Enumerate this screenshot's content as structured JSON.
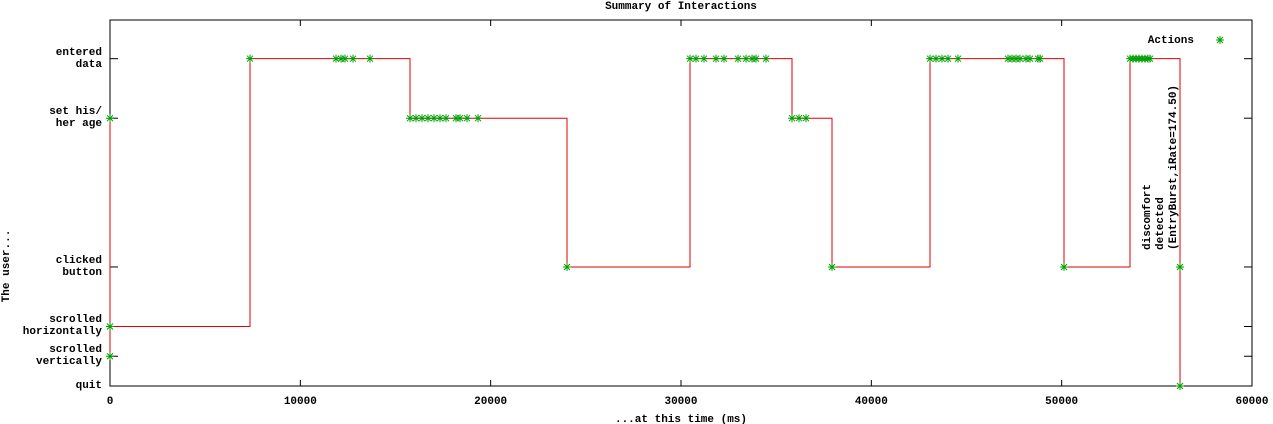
{
  "chart_data": {
    "type": "step",
    "title": "Summary of Interactions",
    "xlabel": "...at this time (ms)",
    "ylabel": "The user...",
    "xlim": [
      0,
      60000
    ],
    "xticks": [
      0,
      10000,
      20000,
      30000,
      40000,
      50000,
      60000
    ],
    "ylim": [
      0,
      12.3
    ],
    "yticks": [
      {
        "value": 0,
        "label": "quit"
      },
      {
        "value": 1,
        "label": "scrolled\nvertically"
      },
      {
        "value": 2,
        "label": "scrolled\nhorizontally"
      },
      {
        "value": 4,
        "label": "clicked\nbutton"
      },
      {
        "value": 9,
        "label": "set his/\nher age"
      },
      {
        "value": 11,
        "label": "entered\ndata"
      }
    ],
    "line_color": "#e00000",
    "legend": "top-right",
    "series": [
      {
        "name": "Actions",
        "color": "#00a000",
        "x": [
          0,
          0,
          0,
          7356,
          11874,
          12137,
          12347,
          12768,
          13660,
          15762,
          16077,
          16392,
          16708,
          17023,
          17338,
          17653,
          18178,
          18389,
          18757,
          19335,
          24011,
          30473,
          30788,
          31208,
          31839,
          32259,
          32995,
          33416,
          33731,
          33941,
          34466,
          35832,
          36200,
          36568,
          37934,
          43083,
          43398,
          43713,
          44029,
          44554,
          47180,
          47390,
          47601,
          47811,
          48126,
          48337,
          48757,
          48862,
          50123,
          53590,
          53748,
          53906,
          54063,
          54221,
          54379,
          54536,
          54641,
          56218,
          56218
        ],
        "values": [
          1,
          9,
          2,
          11,
          11,
          11,
          11,
          11,
          11,
          9,
          9,
          9,
          9,
          9,
          9,
          9,
          9,
          9,
          9,
          9,
          4,
          11,
          11,
          11,
          11,
          11,
          11,
          11,
          11,
          11,
          11,
          9,
          9,
          9,
          4,
          11,
          11,
          11,
          11,
          11,
          11,
          11,
          11,
          11,
          11,
          11,
          11,
          11,
          4,
          11,
          11,
          11,
          11,
          11,
          11,
          11,
          11,
          4,
          0
        ]
      }
    ],
    "annotation": [
      "discomfort",
      "detected",
      "(EntryBurst,iRate=174.50)"
    ]
  }
}
